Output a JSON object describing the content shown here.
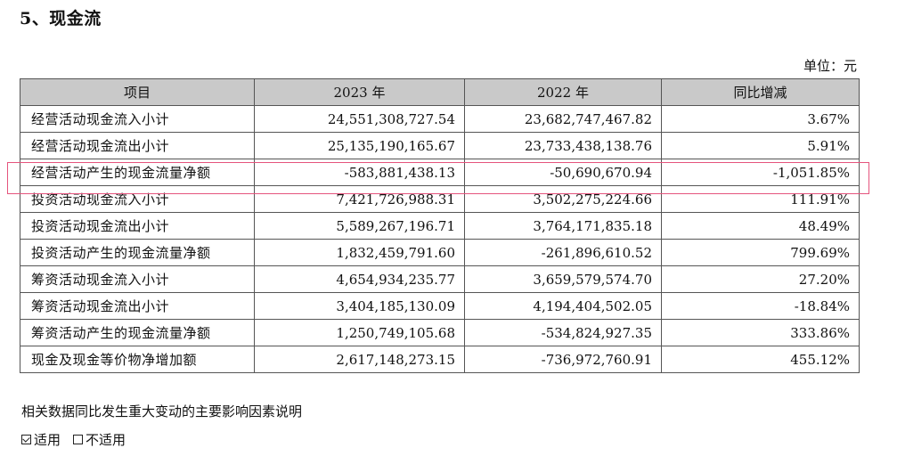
{
  "section_title": "5、现金流",
  "unit_label": "单位：元",
  "table": {
    "headers": [
      "项目",
      "2023 年",
      "2022 年",
      "同比增减"
    ],
    "rows": [
      {
        "item": "经营活动现金流入小计",
        "y2023": "24,551,308,727.54",
        "y2022": "23,682,747,467.82",
        "change": "3.67%"
      },
      {
        "item": "经营活动现金流出小计",
        "y2023": "25,135,190,165.67",
        "y2022": "23,733,438,138.76",
        "change": "5.91%"
      },
      {
        "item": "经营活动产生的现金流量净额",
        "y2023": "-583,881,438.13",
        "y2022": "-50,690,670.94",
        "change": "-1,051.85%"
      },
      {
        "item": "投资活动现金流入小计",
        "y2023": "7,421,726,988.31",
        "y2022": "3,502,275,224.66",
        "change": "111.91%"
      },
      {
        "item": "投资活动现金流出小计",
        "y2023": "5,589,267,196.71",
        "y2022": "3,764,171,835.18",
        "change": "48.49%"
      },
      {
        "item": "投资活动产生的现金流量净额",
        "y2023": "1,832,459,791.60",
        "y2022": "-261,896,610.52",
        "change": "799.69%"
      },
      {
        "item": "筹资活动现金流入小计",
        "y2023": "4,654,934,235.77",
        "y2022": "3,659,579,574.70",
        "change": "27.20%"
      },
      {
        "item": "筹资活动现金流出小计",
        "y2023": "3,404,185,130.09",
        "y2022": "4,194,404,502.05",
        "change": "-18.84%"
      },
      {
        "item": "筹资活动产生的现金流量净额",
        "y2023": "1,250,749,105.68",
        "y2022": "-534,824,927.35",
        "change": "333.86%"
      },
      {
        "item": "现金及现金等价物净增加额",
        "y2023": "2,617,148,273.15",
        "y2022": "-736,972,760.91",
        "change": "455.12%"
      }
    ]
  },
  "highlight_color": "#e5547d",
  "note": "相关数据同比发生重大变动的主要影响因素说明",
  "options": [
    {
      "label": "适用",
      "checked": true
    },
    {
      "label": "不适用",
      "checked": false
    }
  ]
}
